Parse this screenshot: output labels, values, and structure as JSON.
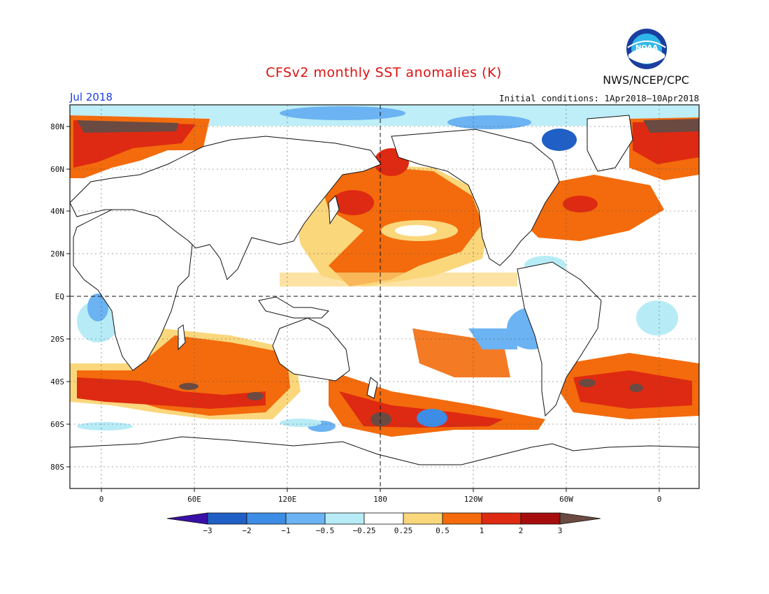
{
  "title": "CFSv2 monthly SST anomalies (K)",
  "month": "Jul 2018",
  "initial_conditions": "Initial conditions: 1Apr2018–10Apr2018",
  "org": "NWS/NCEP/CPC",
  "logo_text": "NOAA",
  "map": {
    "lon_labels": [
      "0",
      "60E",
      "120E",
      "180",
      "120W",
      "60W",
      "0"
    ],
    "lat_labels": [
      "80N",
      "60N",
      "40N",
      "20N",
      "EQ",
      "20S",
      "40S",
      "60S",
      "80S"
    ]
  },
  "colorbar": {
    "ticks": [
      "−3",
      "−2",
      "−1",
      "−0.5",
      "−0.25",
      "0.25",
      "0.5",
      "1",
      "2",
      "3"
    ],
    "colors": [
      "#3a10a8",
      "#1f5fc6",
      "#3d8de6",
      "#6bb3f2",
      "#b7ecf6",
      "#ffffff",
      "#fbd77c",
      "#f36b0c",
      "#de2a12",
      "#a60e0e",
      "#6b4a42"
    ]
  }
}
